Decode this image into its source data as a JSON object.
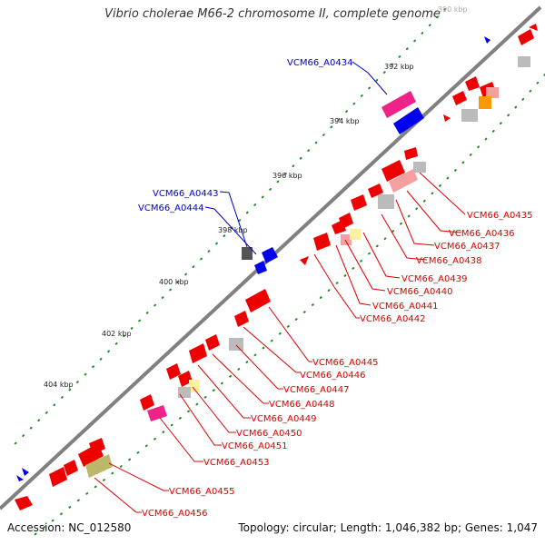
{
  "title": "Vibrio cholerae M66-2 chromosome II, complete genome",
  "footer": {
    "accession": "Accession: NC_012580",
    "topology": "Topology: circular; Length: 1,046,382 bp; Genes: 1,047"
  },
  "colors": {
    "backbone": "#808080",
    "forward_gene": "#0000ff",
    "reverse_gene": "#ff0000",
    "label_forward": "#0000cc",
    "label_reverse": "#dd0000",
    "tick": "#228b22"
  },
  "ticks": [
    "390 kbp",
    "392 kbp",
    "394 kbp",
    "396 kbp",
    "398 kbp",
    "400 kbp",
    "402 kbp",
    "404 kbp"
  ],
  "gene_labels": [
    "VCM66_A0434",
    "VCM66_A0443",
    "VCM66_A0444",
    "VCM66_A0435",
    "VCM66_A0436",
    "VCM66_A0437",
    "VCM66_A0438",
    "VCM66_A0439",
    "VCM66_A0440",
    "VCM66_A0441",
    "VCM66_A0442",
    "VCM66_A0445",
    "VCM66_A0446",
    "VCM66_A0447",
    "VCM66_A0448",
    "VCM66_A0449",
    "VCM66_A0450",
    "VCM66_A0451",
    "VCM66_A0453",
    "VCM66_A0455",
    "VCM66_A0456"
  ]
}
